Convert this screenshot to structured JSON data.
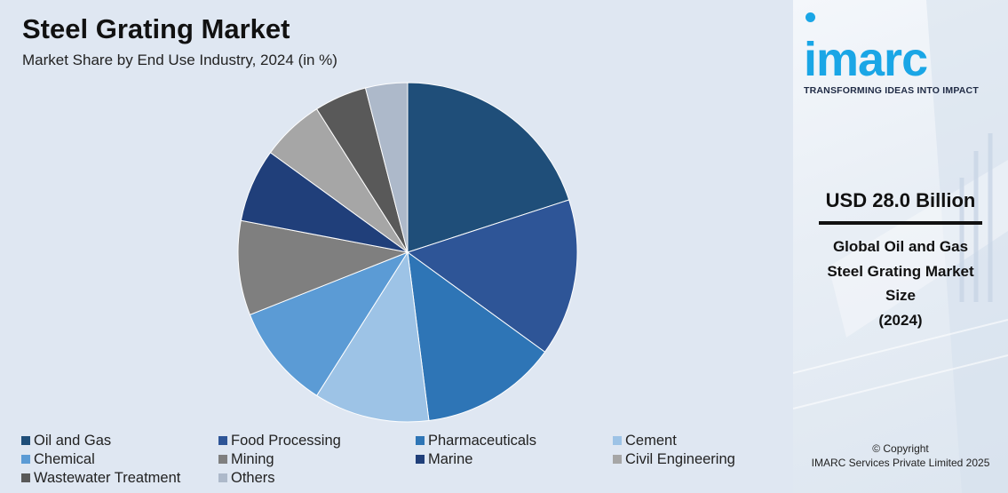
{
  "chart_data": {
    "type": "pie",
    "title": "Steel Grating Market",
    "subtitle": "Market Share by End Use Industry, 2024 (in %)",
    "start_angle_deg": 0,
    "direction": "clockwise",
    "slices": [
      {
        "label": "Oil and Gas",
        "value": 20,
        "color": "#1f4e79"
      },
      {
        "label": "Food Processing",
        "value": 15,
        "color": "#2e5597"
      },
      {
        "label": "Pharmaceuticals",
        "value": 13,
        "color": "#2e75b6"
      },
      {
        "label": "Cement",
        "value": 11,
        "color": "#9dc3e6"
      },
      {
        "label": "Chemical",
        "value": 10,
        "color": "#5b9bd5"
      },
      {
        "label": "Mining",
        "value": 9,
        "color": "#7f7f7f"
      },
      {
        "label": "Marine",
        "value": 7,
        "color": "#203f7a"
      },
      {
        "label": "Civil Engineering",
        "value": 6,
        "color": "#a6a6a6"
      },
      {
        "label": "Wastewater Treatment",
        "value": 5,
        "color": "#595959"
      },
      {
        "label": "Others",
        "value": 4,
        "color": "#adb9ca"
      }
    ]
  },
  "sidebar": {
    "logo_text": "imarc",
    "tagline": "TRANSFORMING IDEAS INTO IMPACT",
    "value": "USD 28.0 Billion",
    "description_lines": [
      "Global Oil and Gas",
      "Steel Grating Market",
      "Size",
      "(2024)"
    ],
    "copyright_lines": [
      "© Copyright",
      "IMARC Services Private Limited 2025"
    ],
    "brand_color": "#1aa6e6"
  }
}
